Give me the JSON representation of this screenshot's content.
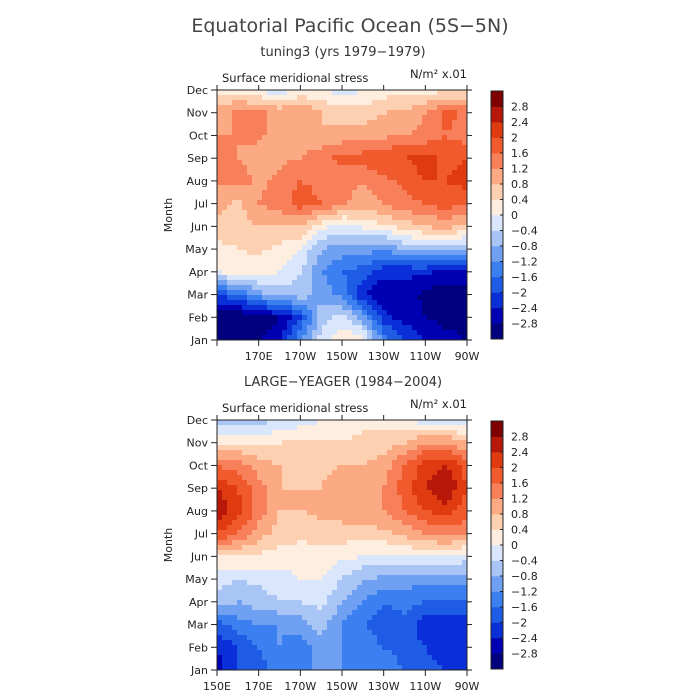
{
  "title": "Equatorial Pacific Ocean (5S−5N)",
  "colors": [
    "#00007f",
    "#0000b3",
    "#0a2fd9",
    "#1f5ce6",
    "#3b7ff0",
    "#6fa0f2",
    "#a8c5f5",
    "#d9e6fb",
    "#fdeee0",
    "#fcd0b0",
    "#fbaa84",
    "#f7805a",
    "#f15a2c",
    "#e03a10",
    "#b8180a",
    "#7f0000"
  ],
  "chart_data": [
    {
      "type": "heatmap",
      "subtitle": "tuning3 (yrs 1979−1979)",
      "variable": "Surface meridional stress",
      "units_label": "N/m² x.01",
      "xlabel": "",
      "ylabel": "Month",
      "x_ticks": [
        "",
        "170E",
        "170W",
        "150W",
        "130W",
        "110W",
        "90W"
      ],
      "x_lon": [
        150,
        170,
        190,
        210,
        230,
        250,
        270
      ],
      "y_months": [
        "Jan",
        "Feb",
        "Mar",
        "Apr",
        "May",
        "Jun",
        "Jul",
        "Aug",
        "Sep",
        "Oct",
        "Nov",
        "Dec"
      ],
      "colorbar_levels": [
        2.8,
        2.4,
        2,
        1.6,
        1.2,
        0.8,
        0.4,
        0,
        -0.4,
        -0.8,
        -1.2,
        -1.6,
        -2,
        -2.4,
        -2.8
      ],
      "grid_lon": [
        150,
        160,
        170,
        180,
        190,
        200,
        210,
        220,
        230,
        240,
        250,
        260,
        270
      ],
      "values": [
        [
          -3.0,
          -3.0,
          -2.8,
          -2.6,
          -1.2,
          -0.2,
          0.3,
          0.2,
          -1.4,
          -2.0,
          -2.4,
          -2.6,
          -2.8
        ],
        [
          -3.2,
          -3.2,
          -3.0,
          -2.8,
          -2.0,
          -0.6,
          -0.2,
          -1.0,
          -2.2,
          -2.6,
          -2.8,
          -3.0,
          -3.0
        ],
        [
          -2.0,
          -1.6,
          -1.0,
          -0.6,
          -0.6,
          -0.9,
          -1.4,
          -2.4,
          -2.8,
          -2.6,
          -2.9,
          -3.1,
          -3.0
        ],
        [
          0.0,
          0.2,
          0.2,
          0.0,
          -0.4,
          -1.2,
          -1.6,
          -1.8,
          -2.2,
          -2.3,
          -2.3,
          -2.5,
          -2.6
        ],
        [
          0.3,
          0.4,
          0.5,
          0.3,
          0.0,
          -0.8,
          -1.0,
          -1.0,
          -1.2,
          -0.8,
          -0.6,
          -0.6,
          -0.8
        ],
        [
          0.6,
          0.6,
          0.8,
          0.8,
          0.8,
          0.1,
          -0.2,
          0.1,
          0.3,
          0.6,
          0.8,
          1.0,
          0.6
        ],
        [
          1.0,
          0.7,
          1.2,
          1.4,
          1.8,
          1.6,
          1.3,
          1.0,
          1.2,
          1.5,
          1.6,
          1.8,
          1.6
        ],
        [
          1.2,
          1.4,
          1.1,
          1.3,
          1.6,
          1.5,
          1.4,
          1.2,
          1.5,
          1.7,
          2.0,
          2.0,
          2.2
        ],
        [
          1.6,
          1.2,
          1.0,
          1.1,
          1.2,
          1.5,
          1.7,
          1.8,
          2.0,
          2.0,
          2.2,
          1.9,
          2.0
        ],
        [
          1.2,
          1.2,
          1.3,
          1.0,
          0.9,
          0.8,
          1.0,
          1.0,
          1.1,
          1.2,
          1.3,
          1.6,
          1.4
        ],
        [
          1.0,
          1.3,
          1.3,
          1.1,
          1.2,
          0.8,
          0.6,
          0.6,
          0.8,
          0.9,
          1.2,
          1.8,
          1.4
        ],
        [
          0.2,
          0.3,
          0.0,
          -0.3,
          0.1,
          0.0,
          -0.2,
          0.0,
          0.2,
          0.2,
          0.2,
          0.3,
          0.4
        ]
      ]
    },
    {
      "type": "heatmap",
      "subtitle": "LARGE−YEAGER (1984−2004)",
      "variable": "Surface meridional stress",
      "units_label": "N/m² x.01",
      "xlabel": "",
      "ylabel": "Month",
      "x_ticks": [
        "150E",
        "170E",
        "170W",
        "150W",
        "130W",
        "110W",
        "90W"
      ],
      "x_lon": [
        150,
        170,
        190,
        210,
        230,
        250,
        270
      ],
      "y_months": [
        "Jan",
        "Feb",
        "Mar",
        "Apr",
        "May",
        "Jun",
        "Jul",
        "Aug",
        "Sep",
        "Oct",
        "Nov",
        "Dec"
      ],
      "colorbar_levels": [
        2.8,
        2.4,
        2,
        1.6,
        1.2,
        0.8,
        0.4,
        0,
        -0.4,
        -0.8,
        -1.2,
        -1.6,
        -2,
        -2.4,
        -2.8
      ],
      "grid_lon": [
        150,
        160,
        170,
        180,
        190,
        200,
        210,
        220,
        230,
        240,
        250,
        260,
        270
      ],
      "values": [
        [
          -2.6,
          -2.0,
          -1.8,
          -1.4,
          -1.6,
          -1.0,
          -1.2,
          -1.2,
          -1.3,
          -1.6,
          -1.8,
          -2.0,
          -2.2
        ],
        [
          -2.4,
          -2.0,
          -1.6,
          -1.2,
          -1.4,
          -1.0,
          -1.2,
          -1.4,
          -1.6,
          -1.8,
          -2.0,
          -2.3,
          -2.4
        ],
        [
          -1.8,
          -1.4,
          -1.2,
          -1.2,
          -1.0,
          -0.6,
          -1.2,
          -1.6,
          -1.8,
          -1.8,
          -2.2,
          -2.4,
          -2.2
        ],
        [
          -0.6,
          -0.8,
          -0.6,
          -0.4,
          -0.4,
          -0.3,
          -0.8,
          -1.2,
          -1.6,
          -1.4,
          -1.6,
          -1.6,
          -1.6
        ],
        [
          -0.2,
          -0.4,
          -0.3,
          -0.2,
          0.0,
          0.0,
          -0.4,
          -0.8,
          -0.9,
          -1.0,
          -1.1,
          -1.1,
          -1.0
        ],
        [
          0.4,
          0.4,
          0.3,
          0.2,
          0.2,
          0.2,
          0.1,
          0.0,
          -0.1,
          0.0,
          0.0,
          0.0,
          -0.2
        ],
        [
          2.0,
          1.6,
          1.0,
          0.6,
          0.5,
          0.6,
          0.6,
          0.6,
          0.7,
          0.9,
          1.2,
          1.4,
          1.2
        ],
        [
          2.8,
          2.2,
          1.4,
          0.8,
          0.8,
          0.9,
          1.0,
          1.1,
          1.2,
          1.6,
          2.0,
          2.2,
          1.8
        ],
        [
          2.4,
          2.0,
          1.4,
          0.8,
          0.8,
          0.8,
          1.0,
          1.1,
          1.2,
          1.8,
          2.4,
          2.8,
          2.0
        ],
        [
          1.6,
          1.4,
          1.0,
          0.8,
          0.7,
          0.7,
          0.8,
          0.8,
          1.0,
          1.6,
          2.2,
          2.4,
          1.8
        ],
        [
          0.2,
          0.4,
          0.4,
          0.4,
          0.5,
          0.5,
          0.4,
          0.5,
          0.6,
          0.8,
          1.2,
          1.2,
          0.8
        ],
        [
          -0.6,
          -0.6,
          -0.6,
          -0.4,
          -0.2,
          0.0,
          0.2,
          0.3,
          0.2,
          0.0,
          -0.2,
          -0.2,
          -0.4
        ]
      ]
    }
  ]
}
